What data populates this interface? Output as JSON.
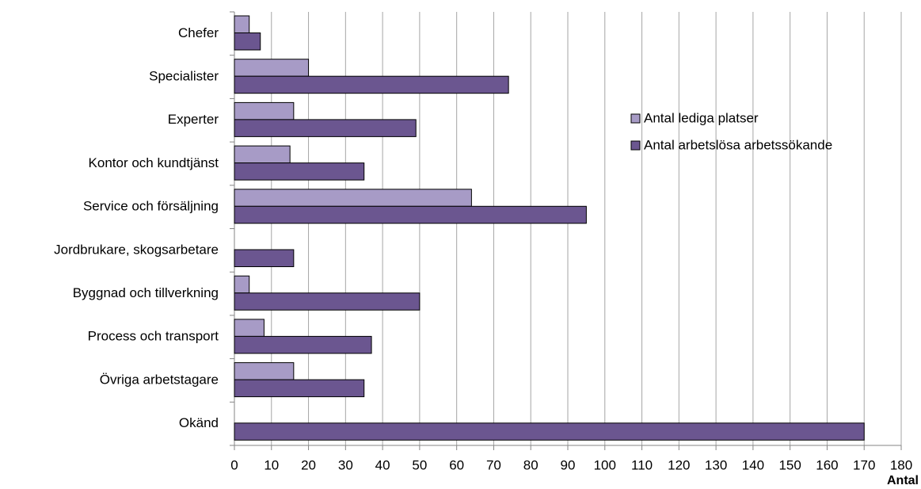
{
  "chart_data": {
    "type": "bar",
    "orientation": "horizontal",
    "categories": [
      "Chefer",
      "Specialister",
      "Experter",
      "Kontor och kundtjänst",
      "Service och försäljning",
      "Jordbrukare, skogsarbetare",
      "Byggnad och tillverkning",
      "Process och transport",
      "Övriga arbetstagare",
      "Okänd"
    ],
    "series": [
      {
        "name": "Antal lediga platser",
        "color": "#a79bc6",
        "values": [
          4,
          20,
          16,
          15,
          64,
          0,
          4,
          8,
          16,
          0
        ]
      },
      {
        "name": "Antal arbetslösa arbetssökande",
        "color": "#6b5690",
        "values": [
          7,
          74,
          49,
          35,
          95,
          16,
          50,
          37,
          35,
          170
        ]
      }
    ],
    "x_label": "Antal",
    "xlim": [
      0,
      180
    ],
    "xticks": [
      0,
      10,
      20,
      30,
      40,
      50,
      60,
      70,
      80,
      90,
      100,
      110,
      120,
      130,
      140,
      150,
      160,
      170,
      180
    ],
    "grid": true
  }
}
